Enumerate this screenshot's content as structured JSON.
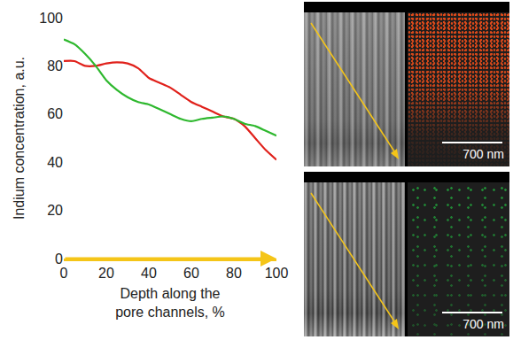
{
  "chart_data": {
    "type": "line",
    "x_label": "Depth along the pore channels, %",
    "y_label": "Indium concentration, a.u.",
    "x": [
      0,
      5,
      10,
      15,
      20,
      25,
      30,
      35,
      40,
      45,
      50,
      55,
      60,
      65,
      70,
      75,
      80,
      85,
      90,
      95,
      100
    ],
    "series": [
      {
        "color": "#e0201a",
        "values": [
          82,
          82,
          80,
          80,
          81,
          81.5,
          81,
          79,
          75,
          73,
          71,
          68,
          65,
          63,
          61,
          59,
          58,
          55,
          50,
          45,
          41
        ]
      },
      {
        "color": "#2eb82e",
        "values": [
          91,
          89,
          85,
          80,
          74,
          70,
          67,
          65,
          64,
          62,
          60,
          58,
          57,
          58,
          58.5,
          59,
          58,
          56,
          55,
          53,
          51
        ]
      }
    ],
    "xlim": [
      0,
      100
    ],
    "xticks": [
      0,
      20,
      40,
      60,
      80,
      100
    ],
    "ylim": [
      0,
      100
    ],
    "yticks": [
      0,
      20,
      40,
      60,
      80,
      100
    ],
    "grid": false
  },
  "images": [
    {
      "scale_bar": "700 nm",
      "color": "#e04a1a"
    },
    {
      "scale_bar": "700 nm",
      "color": "#22cc44"
    }
  ]
}
